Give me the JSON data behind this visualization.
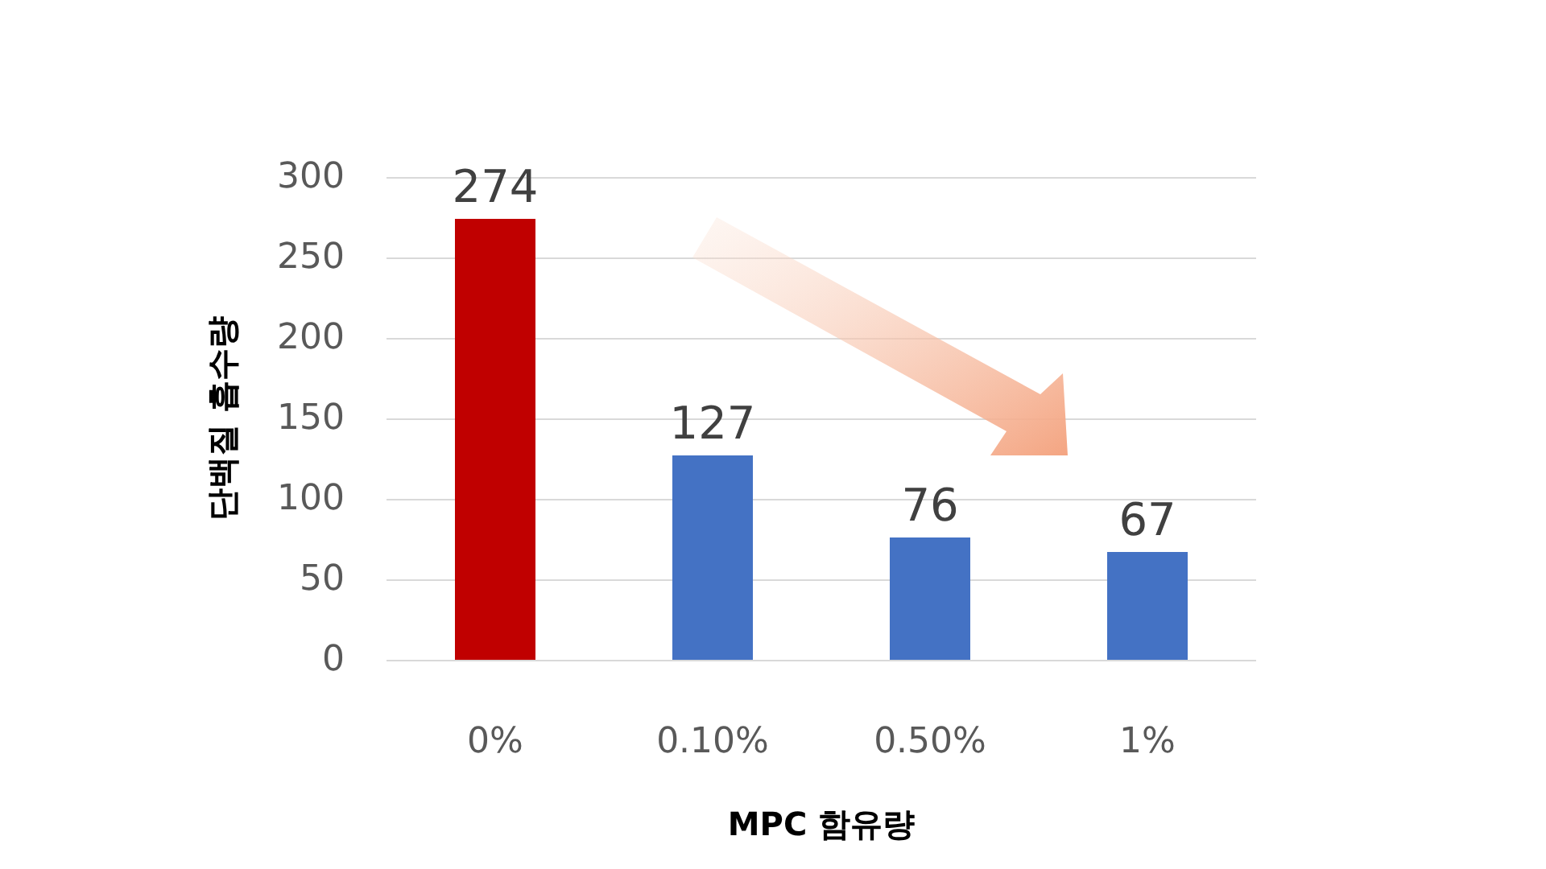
{
  "chart_data": {
    "type": "bar",
    "xlabel": "MPC 함유량",
    "ylabel": "단백질 흡수량",
    "categories": [
      "0%",
      "0.10%",
      "0.50%",
      "1%"
    ],
    "values": [
      274,
      127,
      76,
      67
    ],
    "colors": [
      "#c00000",
      "#4472c4",
      "#4472c4",
      "#4472c4"
    ],
    "ylim": [
      0,
      300
    ],
    "yticks": [
      0,
      50,
      100,
      150,
      200,
      250,
      300
    ],
    "grid": "y",
    "data_labels": true
  }
}
